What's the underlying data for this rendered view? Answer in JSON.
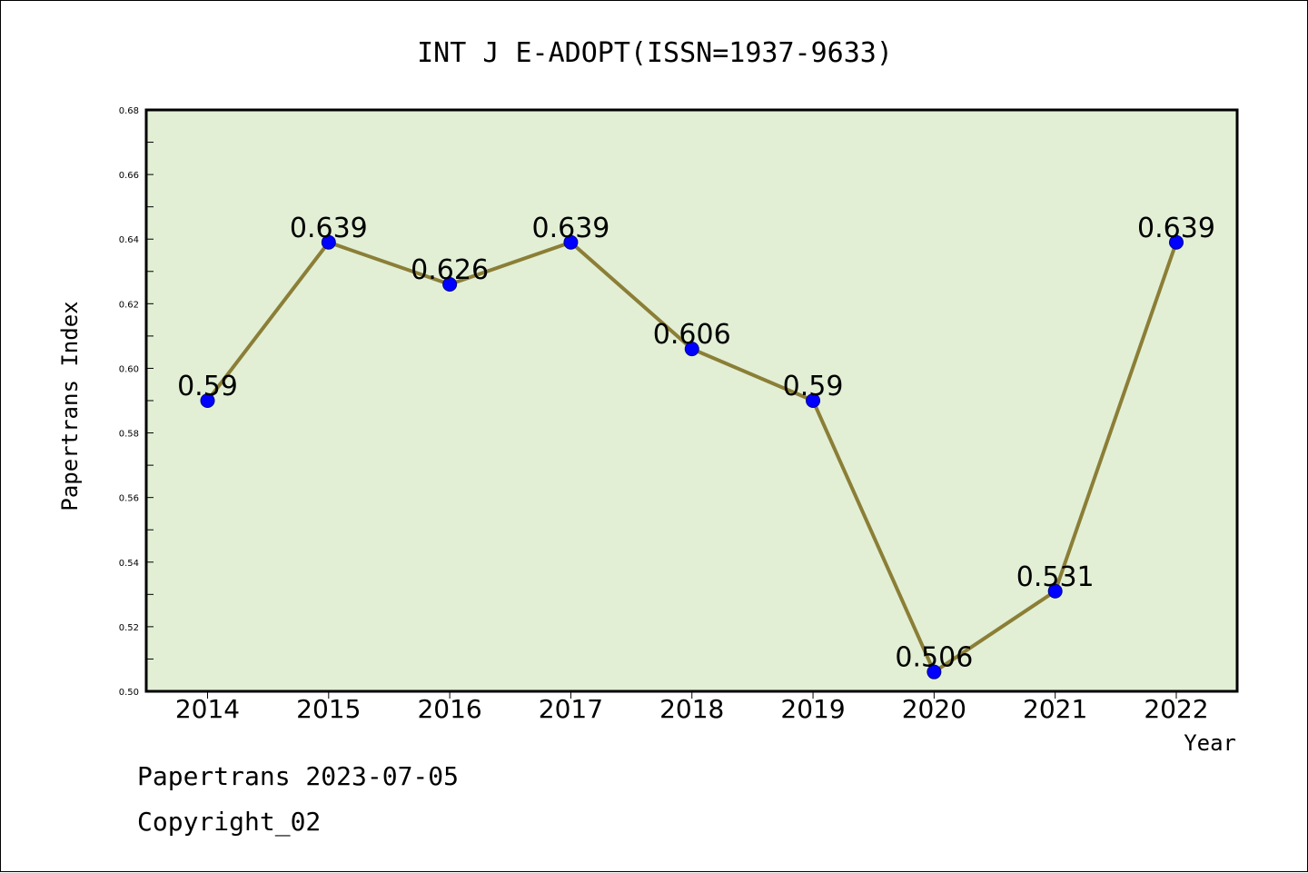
{
  "chart_data": {
    "type": "line",
    "title": "INT J E-ADOPT(ISSN=1937-9633)",
    "xlabel": "Year",
    "ylabel": "Papertrans Index",
    "categories": [
      "2014",
      "2015",
      "2016",
      "2017",
      "2018",
      "2019",
      "2020",
      "2021",
      "2022"
    ],
    "series": [
      {
        "values": [
          0.59,
          0.639,
          0.626,
          0.639,
          0.606,
          0.59,
          0.506,
          0.531,
          0.639
        ],
        "labels": [
          "0.59",
          "0.639",
          "0.626",
          "0.639",
          "0.606",
          "0.59",
          "0.506",
          "0.531",
          "0.639"
        ]
      }
    ],
    "ylim": [
      0.5,
      0.68
    ],
    "yticks": [
      "0.50",
      "0.52",
      "0.54",
      "0.56",
      "0.58",
      "0.60",
      "0.62",
      "0.64",
      "0.66",
      "0.68"
    ],
    "grid": false,
    "colors": {
      "plot_background": "#e2efd5",
      "line": "#8b7e36",
      "marker": "#0000ff"
    }
  },
  "footer": {
    "line1": "Papertrans 2023-07-05",
    "line2": "Copyright_02"
  }
}
